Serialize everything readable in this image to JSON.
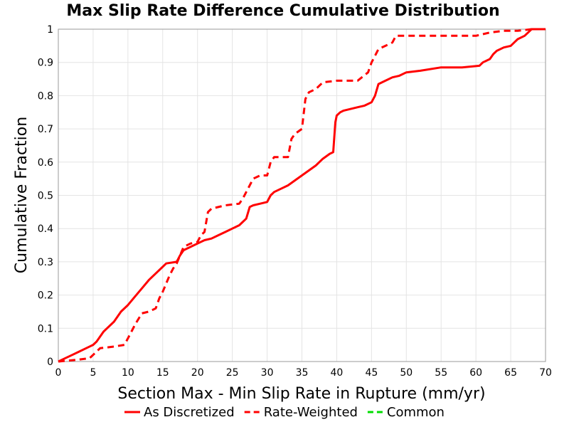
{
  "chart_data": {
    "type": "line",
    "title": "Max Slip Rate Difference Cumulative Distribution",
    "xlabel": "Section Max - Min Slip Rate in Rupture (mm/yr)",
    "ylabel": "Cumulative Fraction",
    "xlim": [
      0,
      70
    ],
    "ylim": [
      0,
      1
    ],
    "x_ticks": [
      0,
      5,
      10,
      15,
      20,
      25,
      30,
      35,
      40,
      45,
      50,
      55,
      60,
      65,
      70
    ],
    "y_ticks": [
      0,
      0.1,
      0.2,
      0.3,
      0.4,
      0.5,
      0.6,
      0.7,
      0.8,
      0.9,
      1
    ],
    "grid": true,
    "legend_position": "bottom",
    "series": [
      {
        "name": "As Discretized",
        "color": "#ff0000",
        "style": "solid",
        "x": [
          0,
          1,
          2,
          3,
          4,
          5,
          5.5,
          6,
          6.5,
          7,
          8,
          9,
          10,
          11,
          12,
          13,
          14,
          15,
          15.5,
          17,
          17.5,
          18,
          19,
          20,
          21,
          22,
          23,
          24,
          25,
          26,
          27,
          27.5,
          28,
          29,
          30,
          30.5,
          31,
          32,
          33,
          34,
          35,
          36,
          37,
          38,
          39,
          39.5,
          39.8,
          40,
          40.5,
          41,
          42,
          43,
          44,
          45,
          45.5,
          46,
          47,
          48,
          49,
          50,
          52,
          55,
          58,
          60.5,
          61,
          62,
          62.5,
          63,
          64,
          65,
          65.5,
          66,
          67,
          67.5,
          68,
          70
        ],
        "y": [
          0,
          0.01,
          0.02,
          0.03,
          0.04,
          0.05,
          0.06,
          0.075,
          0.09,
          0.1,
          0.12,
          0.15,
          0.17,
          0.195,
          0.22,
          0.245,
          0.265,
          0.285,
          0.295,
          0.3,
          0.32,
          0.335,
          0.345,
          0.355,
          0.365,
          0.37,
          0.38,
          0.39,
          0.4,
          0.41,
          0.43,
          0.465,
          0.47,
          0.475,
          0.48,
          0.5,
          0.51,
          0.52,
          0.53,
          0.545,
          0.56,
          0.575,
          0.59,
          0.61,
          0.625,
          0.63,
          0.72,
          0.74,
          0.75,
          0.755,
          0.76,
          0.765,
          0.77,
          0.78,
          0.8,
          0.835,
          0.845,
          0.855,
          0.86,
          0.87,
          0.875,
          0.885,
          0.885,
          0.89,
          0.9,
          0.91,
          0.925,
          0.935,
          0.945,
          0.95,
          0.96,
          0.97,
          0.98,
          0.99,
          1.0,
          1.0
        ]
      },
      {
        "name": "Rate-Weighted",
        "color": "#ff0000",
        "style": "dashed",
        "x": [
          0,
          1.5,
          3,
          4.5,
          5,
          5.5,
          6,
          8,
          9.5,
          10,
          10.5,
          11,
          12,
          13,
          14,
          14.5,
          15,
          16,
          16.5,
          17,
          17.5,
          18,
          19,
          20,
          20.5,
          21,
          21.5,
          22,
          24,
          26,
          26.5,
          27,
          27.5,
          28,
          29,
          30,
          30.5,
          31,
          33,
          33.5,
          34,
          35,
          35.5,
          36,
          37,
          38,
          40,
          43,
          44.5,
          45,
          45.5,
          46,
          47,
          48,
          48.5,
          50,
          55,
          60,
          62,
          64,
          66,
          68,
          70
        ],
        "y": [
          0,
          0.003,
          0.006,
          0.01,
          0.02,
          0.03,
          0.04,
          0.045,
          0.05,
          0.07,
          0.09,
          0.11,
          0.145,
          0.15,
          0.16,
          0.19,
          0.21,
          0.26,
          0.28,
          0.295,
          0.32,
          0.345,
          0.355,
          0.36,
          0.38,
          0.39,
          0.45,
          0.46,
          0.47,
          0.475,
          0.49,
          0.51,
          0.53,
          0.55,
          0.56,
          0.56,
          0.6,
          0.615,
          0.615,
          0.67,
          0.685,
          0.7,
          0.79,
          0.81,
          0.82,
          0.84,
          0.845,
          0.845,
          0.87,
          0.9,
          0.92,
          0.94,
          0.95,
          0.96,
          0.98,
          0.98,
          0.98,
          0.98,
          0.99,
          0.995,
          0.995,
          1.0,
          1.0
        ]
      },
      {
        "name": "Common",
        "color": "#00dd00",
        "style": "dashed",
        "x": [],
        "y": []
      }
    ]
  }
}
